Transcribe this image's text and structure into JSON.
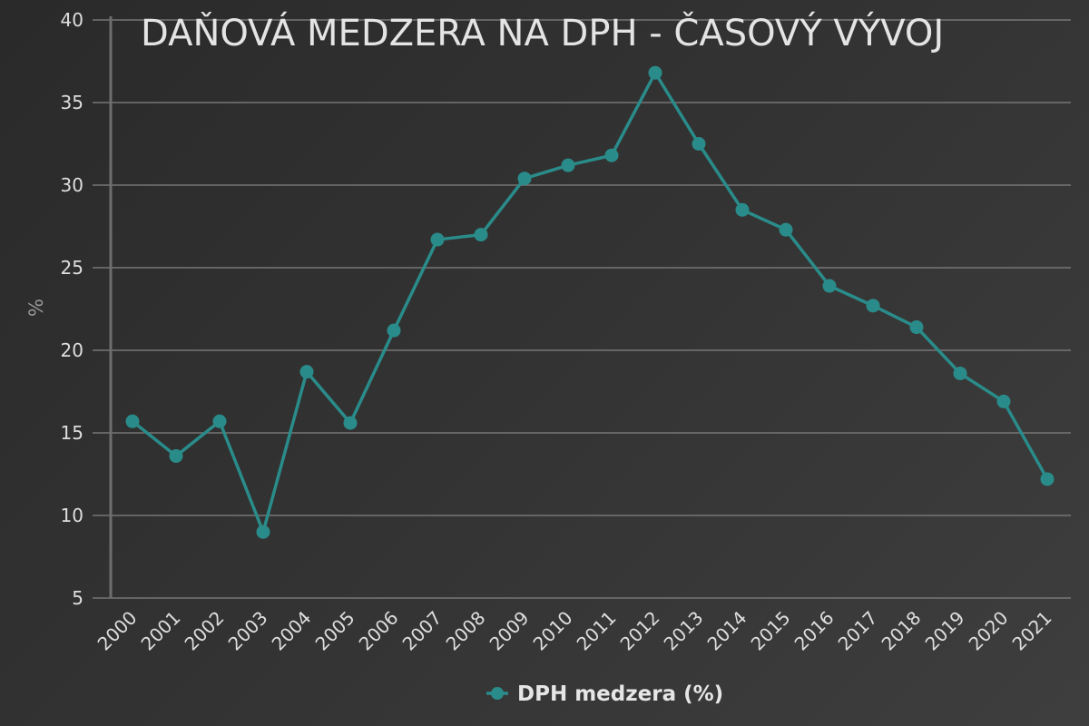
{
  "colors": {
    "series": "#2a8c8a",
    "grid": "#767676",
    "axis": "#6e6e6e",
    "text": "#dedede"
  },
  "chart_data": {
    "type": "line",
    "title": "DAŇOVÁ MEDZERA NA DPH - ČASOVÝ VÝVOJ",
    "xlabel": "",
    "ylabel": "%",
    "categories": [
      "2000",
      "2001",
      "2002",
      "2003",
      "2004",
      "2005",
      "2006",
      "2007",
      "2008",
      "2009",
      "2010",
      "2011",
      "2012",
      "2013",
      "2014",
      "2015",
      "2016",
      "2017",
      "2018",
      "2019",
      "2020",
      "2021"
    ],
    "series": [
      {
        "name": "DPH medzera (%)",
        "values": [
          15.7,
          13.6,
          15.7,
          9.0,
          18.7,
          15.6,
          21.2,
          26.7,
          27.0,
          30.4,
          31.2,
          31.8,
          36.8,
          32.5,
          28.5,
          27.3,
          23.9,
          22.7,
          21.4,
          18.6,
          16.9,
          12.2
        ]
      }
    ],
    "ylim": [
      5,
      40
    ],
    "yticks": [
      5,
      10,
      15,
      20,
      25,
      30,
      35,
      40
    ],
    "grid": true,
    "legend_position": "bottom-center"
  }
}
